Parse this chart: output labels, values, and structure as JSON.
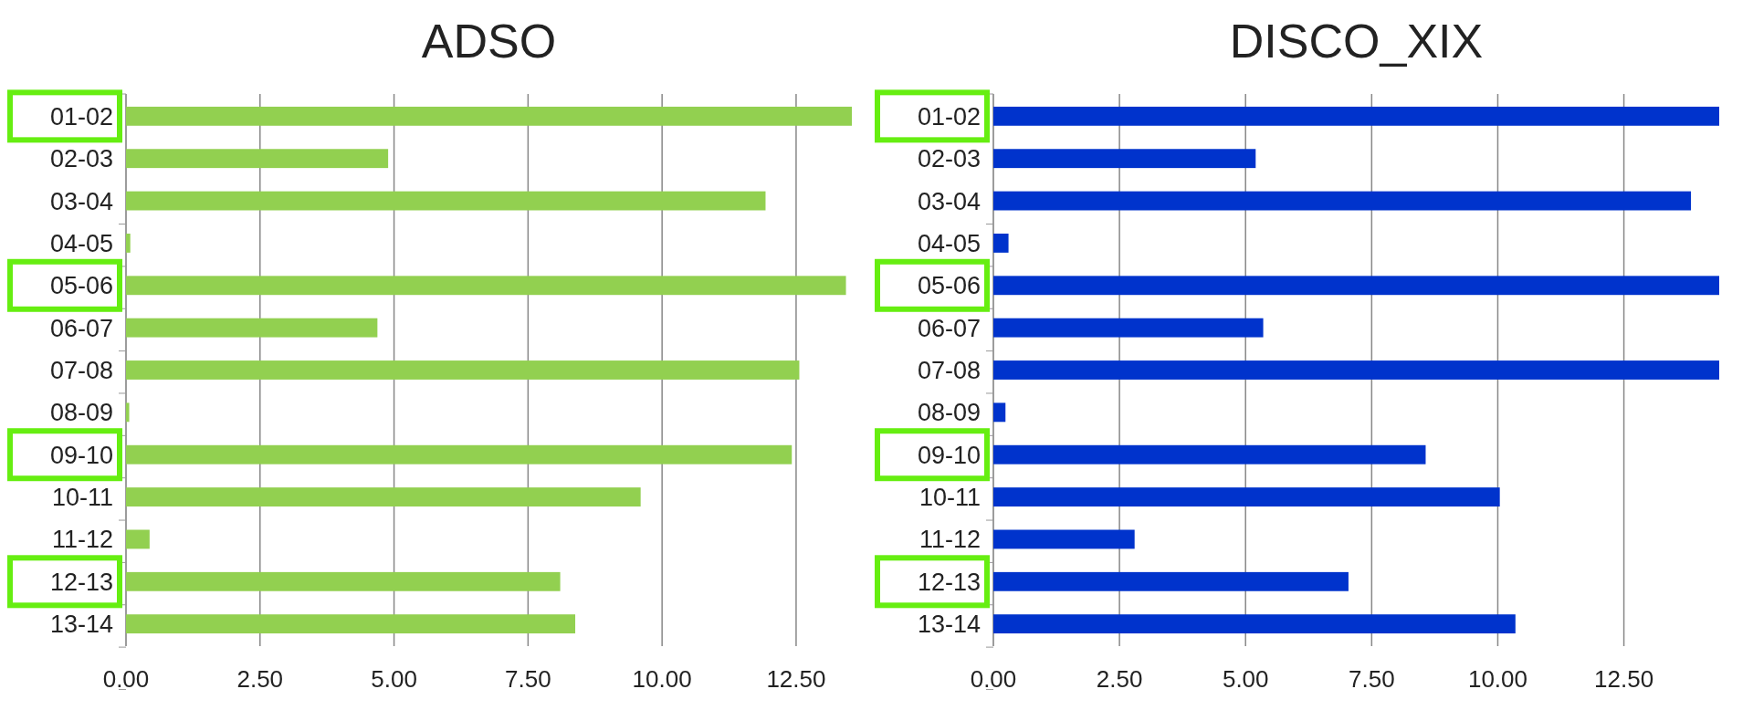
{
  "chart_data": [
    {
      "type": "bar",
      "title": "ADSO",
      "orientation": "horizontal",
      "categories": [
        "01-02",
        "02-03",
        "03-04",
        "04-05",
        "05-06",
        "06-07",
        "07-08",
        "08-09",
        "09-10",
        "10-11",
        "11-12",
        "12-13",
        "13-14"
      ],
      "values": [
        13.54,
        4.89,
        11.93,
        0.08,
        13.43,
        4.69,
        12.56,
        0.06,
        12.42,
        9.6,
        0.44,
        8.1,
        8.38
      ],
      "color": "#92d050",
      "xlim": [
        0,
        13.54
      ],
      "xticks": [
        {
          "value": 0,
          "label": "0.00"
        },
        {
          "value": 2.5,
          "label": "2.50"
        },
        {
          "value": 5,
          "label": "5.00"
        },
        {
          "value": 7.5,
          "label": "7.50"
        },
        {
          "value": 10,
          "label": "10.00"
        },
        {
          "value": 12.5,
          "label": "12.50"
        }
      ],
      "grid": "x"
    },
    {
      "type": "bar",
      "title": "DISCO_XIX",
      "orientation": "horizontal",
      "categories": [
        "01-02",
        "02-03",
        "03-04",
        "04-05",
        "05-06",
        "06-07",
        "07-08",
        "08-09",
        "09-10",
        "10-11",
        "11-12",
        "12-13",
        "13-14"
      ],
      "values": [
        14.39,
        5.2,
        13.83,
        0.3,
        14.39,
        5.35,
        14.39,
        0.24,
        8.57,
        10.04,
        2.8,
        7.04,
        10.35
      ],
      "color": "#0033cc",
      "xlim": [
        0,
        14.39
      ],
      "xticks": [
        {
          "value": 0,
          "label": "0.00"
        },
        {
          "value": 2.5,
          "label": "2.50"
        },
        {
          "value": 5,
          "label": "5.00"
        },
        {
          "value": 7.5,
          "label": "7.50"
        },
        {
          "value": 10,
          "label": "10.00"
        },
        {
          "value": 12.5,
          "label": "12.50"
        }
      ],
      "grid": "x"
    }
  ]
}
